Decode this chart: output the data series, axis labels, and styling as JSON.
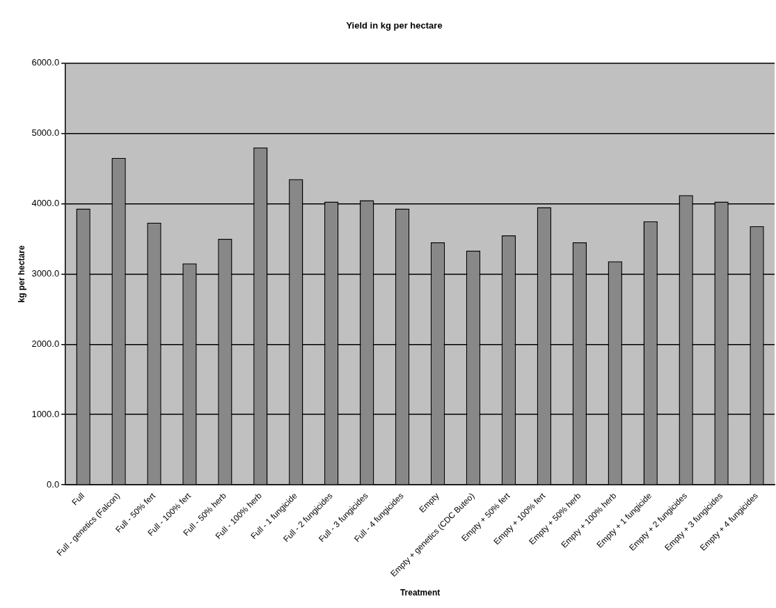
{
  "chart_data": {
    "type": "bar",
    "title": "Yield in kg per hectare",
    "xlabel": "Treatment",
    "ylabel": "kg per hectare",
    "categories": [
      "Full",
      "Full - genetics (Falcon)",
      "Full - 50% fert",
      "Full - 100% fert",
      "Full - 50% herb",
      "Full - 100% herb",
      "Full - 1 fungicide",
      "Full - 2 fungicides",
      "Full - 3 fungicides",
      "Full - 4 fungicides",
      "Empty",
      "Empty + genetics (CDC Buteo)",
      "Empty + 50% fert",
      "Empty + 100% fert",
      "Empty + 50% herb",
      "Empty + 100% herb",
      "Empty + 1 fungicide",
      "Empty + 2 fungicides",
      "Empty + 3 fungicides",
      "Empty + 4 fungicides"
    ],
    "values": [
      3930,
      4650,
      3730,
      3150,
      3500,
      4800,
      4350,
      4030,
      4050,
      3930,
      3450,
      3330,
      3550,
      3950,
      3450,
      3180,
      3750,
      4120,
      4030,
      3680
    ],
    "color": "#888888",
    "ylim": [
      0,
      6000
    ],
    "yticks": [
      {
        "value": 0,
        "label": "0.0"
      },
      {
        "value": 1000,
        "label": "1000.0"
      },
      {
        "value": 2000,
        "label": "2000.0"
      },
      {
        "value": 3000,
        "label": "3000.0"
      },
      {
        "value": 4000,
        "label": "4000.0"
      },
      {
        "value": 5000,
        "label": "5000.0"
      },
      {
        "value": 6000,
        "label": "6000.0"
      }
    ],
    "grid": "y",
    "legend": false
  }
}
